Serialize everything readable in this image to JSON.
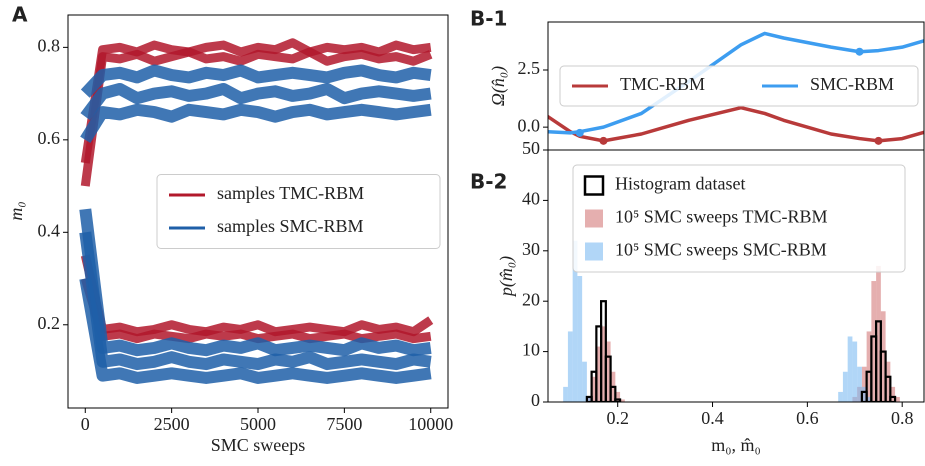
{
  "chart_data": [
    {
      "type": "line",
      "title": "A",
      "xlabel": "SMC sweeps",
      "ylabel": "m₀",
      "xlim": [
        -500,
        10500
      ],
      "xticks": [
        0,
        2500,
        5000,
        7500,
        10000
      ],
      "ylim": [
        0.02,
        0.87
      ],
      "yticks": [
        0.2,
        0.4,
        0.6,
        0.8
      ],
      "legend": "center right",
      "x": [
        0,
        500,
        1000,
        1500,
        2000,
        2500,
        3000,
        3500,
        4000,
        4500,
        5000,
        5500,
        6000,
        6500,
        7000,
        7500,
        8000,
        8500,
        9000,
        9500,
        10000
      ],
      "series": [
        {
          "name": "samples TMC-RBM",
          "color": "#b2182b",
          "lines": [
            [
              0.5,
              0.78,
              0.775,
              0.785,
              0.77,
              0.78,
              0.79,
              0.775,
              0.78,
              0.77,
              0.785,
              0.78,
              0.775,
              0.79,
              0.77,
              0.78,
              0.785,
              0.775,
              0.78,
              0.77,
              0.785
            ],
            [
              0.55,
              0.795,
              0.8,
              0.79,
              0.805,
              0.795,
              0.79,
              0.8,
              0.805,
              0.79,
              0.8,
              0.795,
              0.81,
              0.79,
              0.8,
              0.795,
              0.8,
              0.79,
              0.805,
              0.795,
              0.8
            ],
            [
              0.3,
              0.175,
              0.18,
              0.17,
              0.18,
              0.175,
              0.17,
              0.18,
              0.175,
              0.18,
              0.17,
              0.175,
              0.18,
              0.17,
              0.175,
              0.18,
              0.17,
              0.175,
              0.18,
              0.17,
              0.175
            ],
            [
              0.35,
              0.19,
              0.195,
              0.185,
              0.19,
              0.2,
              0.19,
              0.185,
              0.195,
              0.19,
              0.2,
              0.185,
              0.19,
              0.195,
              0.19,
              0.185,
              0.2,
              0.19,
              0.195,
              0.185,
              0.21
            ]
          ]
        },
        {
          "name": "samples SMC-RBM",
          "color": "#1f5fa8",
          "lines": [
            [
              0.6,
              0.66,
              0.655,
              0.665,
              0.66,
              0.65,
              0.665,
              0.66,
              0.655,
              0.665,
              0.66,
              0.65,
              0.66,
              0.665,
              0.655,
              0.66,
              0.665,
              0.66,
              0.655,
              0.66,
              0.665
            ],
            [
              0.65,
              0.7,
              0.71,
              0.69,
              0.7,
              0.705,
              0.695,
              0.7,
              0.71,
              0.69,
              0.7,
              0.705,
              0.695,
              0.7,
              0.71,
              0.69,
              0.7,
              0.705,
              0.7,
              0.695,
              0.7
            ],
            [
              0.7,
              0.74,
              0.745,
              0.735,
              0.75,
              0.74,
              0.735,
              0.745,
              0.74,
              0.75,
              0.735,
              0.74,
              0.745,
              0.74,
              0.735,
              0.745,
              0.75,
              0.74,
              0.735,
              0.745,
              0.74
            ],
            [
              0.3,
              0.09,
              0.095,
              0.085,
              0.09,
              0.095,
              0.09,
              0.085,
              0.09,
              0.095,
              0.085,
              0.09,
              0.095,
              0.09,
              0.085,
              0.09,
              0.095,
              0.09,
              0.085,
              0.09,
              0.095
            ],
            [
              0.4,
              0.12,
              0.125,
              0.115,
              0.12,
              0.13,
              0.12,
              0.115,
              0.125,
              0.12,
              0.115,
              0.125,
              0.12,
              0.13,
              0.115,
              0.12,
              0.125,
              0.12,
              0.115,
              0.125,
              0.12
            ],
            [
              0.45,
              0.15,
              0.155,
              0.145,
              0.15,
              0.16,
              0.15,
              0.145,
              0.155,
              0.15,
              0.16,
              0.145,
              0.15,
              0.155,
              0.15,
              0.145,
              0.16,
              0.15,
              0.155,
              0.145,
              0.15
            ]
          ]
        }
      ]
    },
    {
      "type": "line",
      "title": "B-1",
      "ylabel": "Ω(n̂₀)",
      "xlim": [
        0.053,
        0.846
      ],
      "ylim": [
        -1.0,
        4.6
      ],
      "yticks": [
        {
          "value": 0,
          "label": "0.0"
        },
        2.5
      ],
      "legend": "center",
      "x": [
        0.05,
        0.1,
        0.12,
        0.17,
        0.25,
        0.35,
        0.46,
        0.51,
        0.55,
        0.65,
        0.71,
        0.75,
        0.8,
        0.85
      ],
      "series": [
        {
          "name": "TMC-RBM",
          "color": "#b83a3a",
          "values": [
            0.5,
            -0.2,
            -0.4,
            -0.6,
            -0.3,
            0.3,
            0.85,
            0.6,
            0.3,
            -0.3,
            -0.5,
            -0.6,
            -0.5,
            -0.2
          ],
          "minima": {
            "x": [
              0.17,
              0.75
            ],
            "values": [
              -0.6,
              -0.6
            ]
          }
        },
        {
          "name": "SMC-RBM",
          "color": "#3d9df0",
          "values": [
            -0.2,
            -0.25,
            -0.2,
            0,
            0.6,
            2.0,
            3.6,
            4.1,
            3.9,
            3.5,
            3.3,
            3.35,
            3.5,
            3.8
          ],
          "minima": {
            "x": [
              0.12,
              0.71
            ],
            "values": [
              -0.25,
              3.3
            ]
          }
        }
      ]
    },
    {
      "type": "bar",
      "title": "B-2",
      "xlabel": "m₀, m̂₀",
      "ylabel": "p(m̂₀)",
      "xlim": [
        0.053,
        0.846
      ],
      "xticks": [
        0.2,
        0.4,
        0.6,
        0.8
      ],
      "ylim": [
        0,
        50
      ],
      "yticks": [
        0,
        10,
        20,
        30,
        40,
        50
      ],
      "legend": "upper right",
      "x": [
        0.08,
        0.09,
        0.1,
        0.11,
        0.12,
        0.13,
        0.14,
        0.15,
        0.16,
        0.17,
        0.18,
        0.19,
        0.2,
        0.21,
        0.22,
        0.66,
        0.67,
        0.68,
        0.69,
        0.7,
        0.71,
        0.72,
        0.73,
        0.74,
        0.75,
        0.76,
        0.77,
        0.78,
        0.79,
        0.8,
        0.81,
        0.82
      ],
      "series": [
        {
          "name": "Histogram dataset",
          "color": "#000000",
          "fill": false,
          "values": [
            0,
            0,
            0,
            0,
            0,
            0,
            1,
            6,
            15,
            20,
            9,
            3,
            0.5,
            0,
            0,
            0,
            0,
            0,
            0,
            0,
            0,
            2,
            6,
            13,
            16,
            10,
            5,
            1,
            0,
            0,
            0,
            0
          ]
        },
        {
          "name": "10⁵ SMC sweeps TMC-RBM",
          "color": "#d47a7a",
          "fill": true,
          "values": [
            0,
            0,
            0,
            0,
            0,
            0,
            1,
            5,
            11,
            15,
            12,
            6,
            2,
            0.5,
            0,
            0,
            0,
            0,
            0,
            1,
            3,
            7,
            14,
            24,
            27,
            18,
            8,
            3,
            1,
            0,
            0,
            0
          ]
        },
        {
          "name": "10⁵ SMC sweeps SMC-RBM",
          "color": "#7dbbf2",
          "fill": true,
          "values": [
            0,
            3,
            14,
            32,
            25,
            8,
            1,
            0,
            0,
            0,
            0,
            0,
            0,
            0,
            0,
            0,
            2,
            6,
            13,
            12,
            7,
            3,
            1,
            0,
            0,
            0,
            0,
            0,
            0,
            0,
            0,
            0
          ]
        }
      ]
    }
  ]
}
